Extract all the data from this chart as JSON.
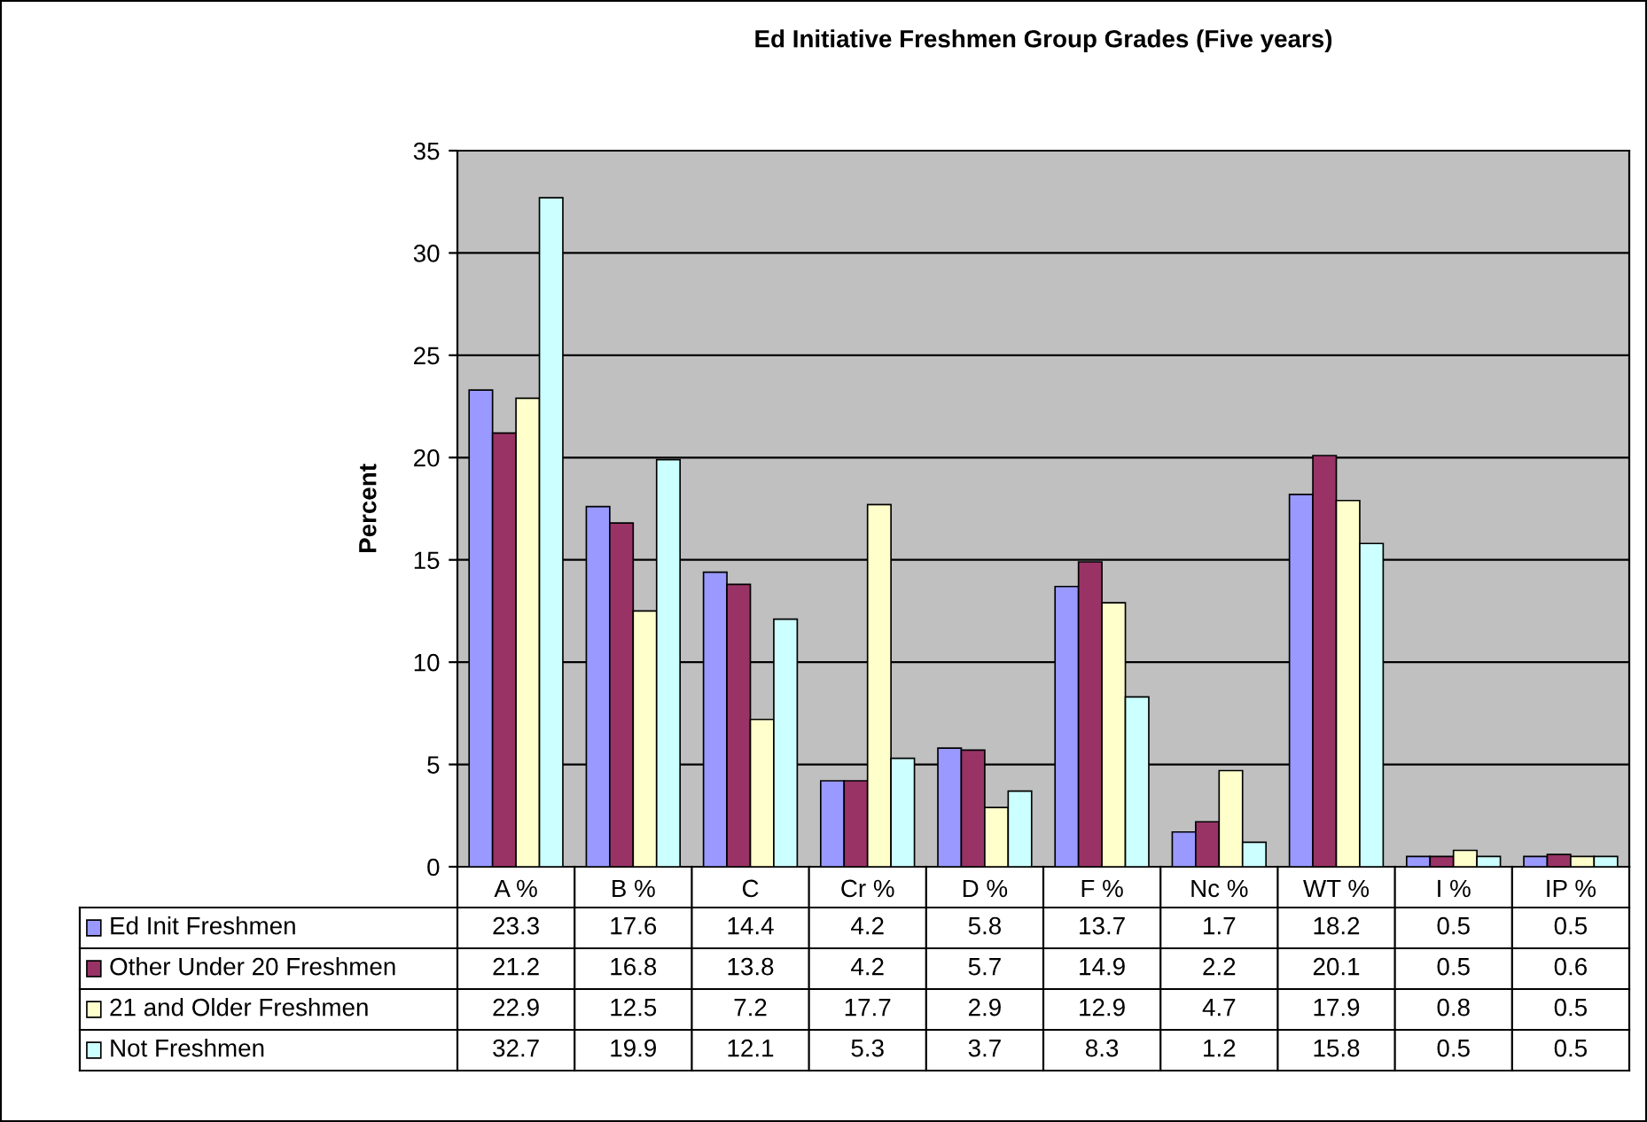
{
  "chart_data": {
    "type": "bar",
    "title": "Ed Initiative Freshmen Group Grades (Five years)",
    "ylabel": "Percent",
    "categories": [
      "A %",
      "B %",
      "C",
      "Cr %",
      "D %",
      "F %",
      "Nc %",
      "WT %",
      "I %",
      "IP %"
    ],
    "series": [
      {
        "name": "Ed Init Freshmen",
        "color": "#9999ff",
        "values": [
          23.3,
          17.6,
          14.4,
          4.2,
          5.8,
          13.7,
          1.7,
          18.2,
          0.5,
          0.5
        ]
      },
      {
        "name": "Other Under 20 Freshmen",
        "color": "#993366",
        "values": [
          21.2,
          16.8,
          13.8,
          4.2,
          5.7,
          14.9,
          2.2,
          20.1,
          0.5,
          0.6
        ]
      },
      {
        "name": "21 and Older Freshmen",
        "color": "#ffffcc",
        "values": [
          22.9,
          12.5,
          7.2,
          17.7,
          2.9,
          12.9,
          4.7,
          17.9,
          0.8,
          0.5
        ]
      },
      {
        "name": "Not Freshmen",
        "color": "#ccffff",
        "values": [
          32.7,
          19.9,
          12.1,
          5.3,
          3.7,
          8.3,
          1.2,
          15.8,
          0.5,
          0.5
        ]
      }
    ],
    "ylim": [
      0,
      35
    ],
    "yticks": [
      0,
      5,
      10,
      15,
      20,
      25,
      30,
      35
    ],
    "grid": "y",
    "legend": "bottom",
    "data_labels": true
  }
}
